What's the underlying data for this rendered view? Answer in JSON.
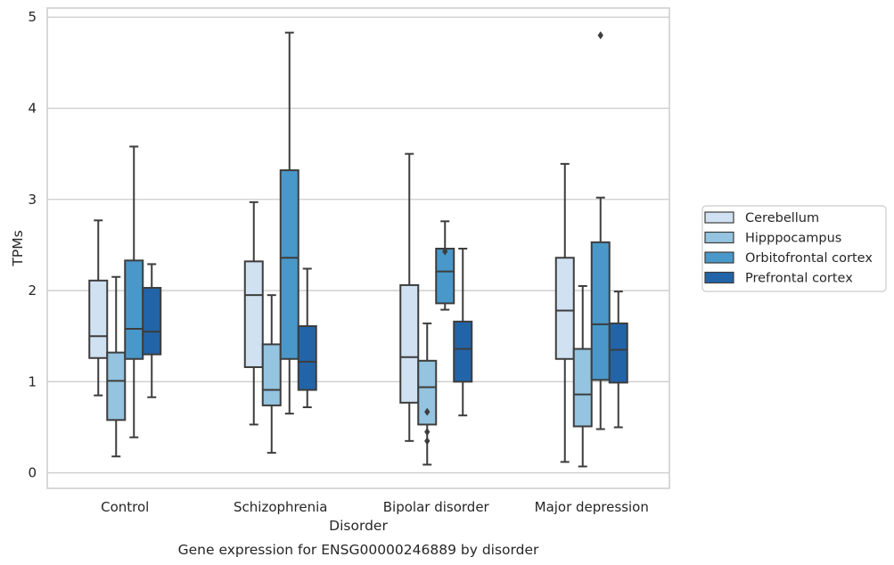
{
  "chart_data": {
    "type": "box",
    "xlabel": "Disorder",
    "ylabel": "TPMs",
    "caption": "Gene expression for ENSG00000246889 by disorder",
    "ylim": [
      -0.17,
      5.1
    ],
    "yticks": [
      0,
      1,
      2,
      3,
      4,
      5
    ],
    "grid": true,
    "legend_position": "right",
    "categories": [
      "Control",
      "Schizophrenia",
      "Bipolar disorder",
      "Major depression"
    ],
    "series": [
      {
        "name": "Cerebellum",
        "color": "#d0e1f2",
        "boxes": [
          {
            "whisker_low": 0.85,
            "q1": 1.26,
            "median": 1.5,
            "q3": 2.11,
            "whisker_high": 2.77,
            "outliers": []
          },
          {
            "whisker_low": 0.53,
            "q1": 1.16,
            "median": 1.95,
            "q3": 2.32,
            "whisker_high": 2.97,
            "outliers": []
          },
          {
            "whisker_low": 0.35,
            "q1": 0.77,
            "median": 1.27,
            "q3": 2.06,
            "whisker_high": 3.5,
            "outliers": []
          },
          {
            "whisker_low": 0.12,
            "q1": 1.25,
            "median": 1.78,
            "q3": 2.36,
            "whisker_high": 3.39,
            "outliers": []
          }
        ]
      },
      {
        "name": "Hipppocampus",
        "color": "#94c4df",
        "boxes": [
          {
            "whisker_low": 0.18,
            "q1": 0.58,
            "median": 1.01,
            "q3": 1.32,
            "whisker_high": 2.15,
            "outliers": []
          },
          {
            "whisker_low": 0.22,
            "q1": 0.74,
            "median": 0.91,
            "q3": 1.41,
            "whisker_high": 1.95,
            "outliers": []
          },
          {
            "whisker_low": 0.09,
            "q1": 0.53,
            "median": 0.94,
            "q3": 1.23,
            "whisker_high": 1.64,
            "outliers": [
              0.67,
              0.45,
              0.35
            ]
          },
          {
            "whisker_low": 0.07,
            "q1": 0.51,
            "median": 0.86,
            "q3": 1.36,
            "whisker_high": 2.05,
            "outliers": []
          }
        ]
      },
      {
        "name": "Orbitofrontal cortex",
        "color": "#4a98c9",
        "boxes": [
          {
            "whisker_low": 0.39,
            "q1": 1.25,
            "median": 1.58,
            "q3": 2.33,
            "whisker_high": 3.58,
            "outliers": []
          },
          {
            "whisker_low": 0.65,
            "q1": 1.25,
            "median": 2.36,
            "q3": 3.32,
            "whisker_high": 4.83,
            "outliers": []
          },
          {
            "whisker_low": 1.79,
            "q1": 1.86,
            "median": 2.21,
            "q3": 2.46,
            "whisker_high": 2.76,
            "outliers": [
              2.43
            ]
          },
          {
            "whisker_low": 0.48,
            "q1": 1.02,
            "median": 1.63,
            "q3": 2.53,
            "whisker_high": 3.02,
            "outliers": [
              4.8
            ]
          }
        ]
      },
      {
        "name": "Prefrontal cortex",
        "color": "#2264a8",
        "boxes": [
          {
            "whisker_low": 0.83,
            "q1": 1.3,
            "median": 1.55,
            "q3": 2.03,
            "whisker_high": 2.29,
            "outliers": []
          },
          {
            "whisker_low": 0.72,
            "q1": 0.91,
            "median": 1.22,
            "q3": 1.61,
            "whisker_high": 2.24,
            "outliers": []
          },
          {
            "whisker_low": 0.63,
            "q1": 1.0,
            "median": 1.36,
            "q3": 1.66,
            "whisker_high": 2.46,
            "outliers": []
          },
          {
            "whisker_low": 0.5,
            "q1": 0.99,
            "median": 1.35,
            "q3": 1.64,
            "whisker_high": 1.99,
            "outliers": []
          }
        ]
      }
    ]
  },
  "colors": {
    "grid": "#cccccc",
    "frame": "#cccccc",
    "box_edge": "#3d3d3d",
    "text": "#262626",
    "legend_border": "#cccccc"
  }
}
